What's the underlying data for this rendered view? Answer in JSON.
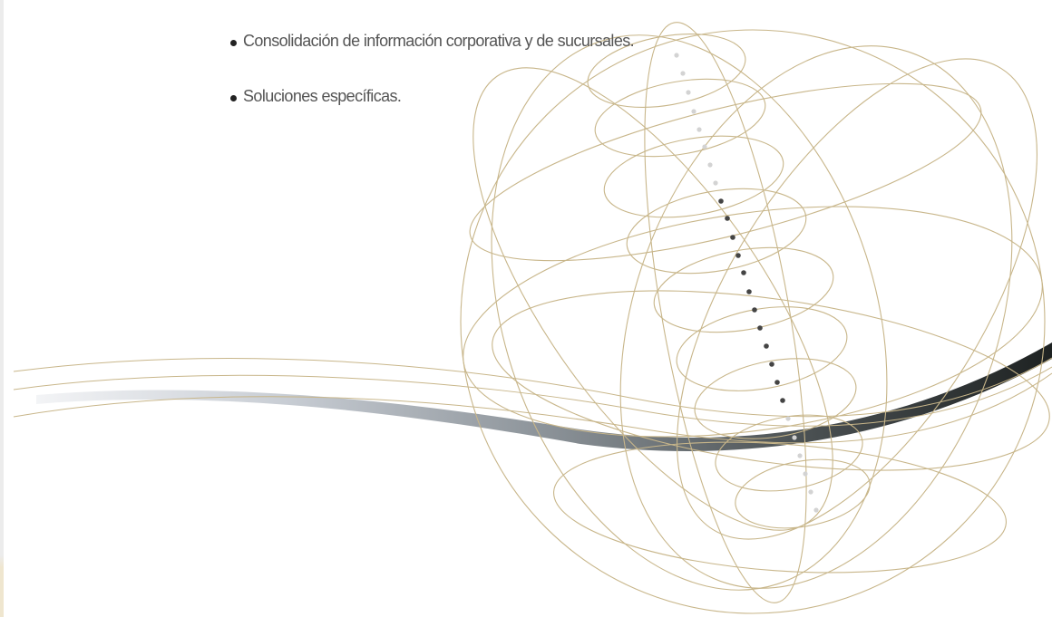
{
  "bullets": [
    "Consolidación de información corporativa y de sucursales.",
    "Soluciones específicas."
  ],
  "graphic": {
    "icon": "wireframe-globe-icon",
    "wave_icon": "swoosh-wave-icon",
    "colors": {
      "wire": "#c8b68a",
      "wave_dark": "#2a2f2f",
      "wave_light": "#dfe2e6",
      "dot_dark": "#444444",
      "dot_light": "#d3d3d3"
    }
  }
}
